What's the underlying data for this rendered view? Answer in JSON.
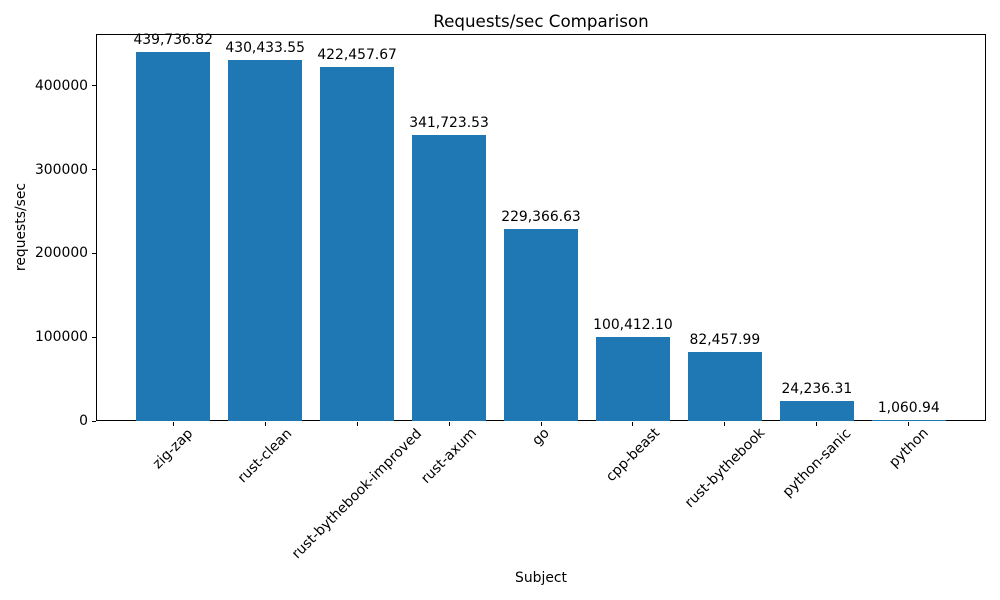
{
  "chart_data": {
    "type": "bar",
    "title": "Requests/sec Comparison",
    "xlabel": "Subject",
    "ylabel": "requests/sec",
    "categories": [
      "zig-zap",
      "rust-clean",
      "rust-bythebook-improved",
      "rust-axum",
      "go",
      "cpp-beast",
      "rust-bythebook",
      "python-sanic",
      "python"
    ],
    "values": [
      439736.82,
      430433.55,
      422457.67,
      341723.53,
      229366.63,
      100412.1,
      82457.99,
      24236.31,
      1060.94
    ],
    "value_labels": [
      "439,736.82",
      "430,433.55",
      "422,457.67",
      "341,723.53",
      "229,366.63",
      "100,412.10",
      "82,457.99",
      "24,236.31",
      "1,060.94"
    ],
    "y_ticks": [
      0,
      100000,
      200000,
      300000,
      400000
    ],
    "ylim": [
      0,
      461723.66
    ],
    "bar_color": "#1f77b4",
    "grid": false,
    "legend_position": "none"
  }
}
